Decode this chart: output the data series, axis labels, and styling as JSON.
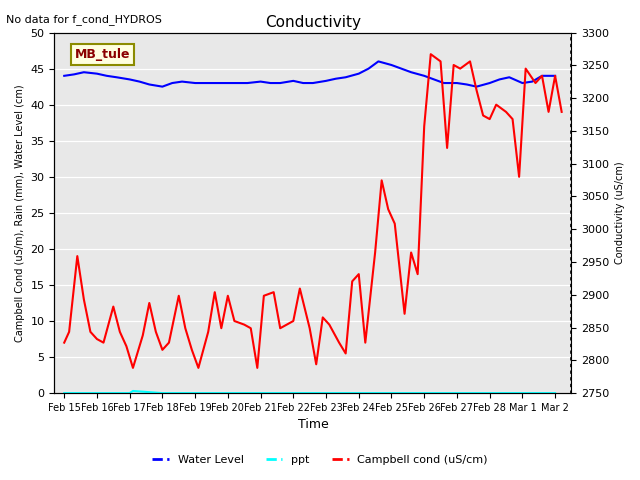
{
  "title": "Conductivity",
  "top_left_text": "No data for f_cond_HYDROS",
  "box_label": "MB_tule",
  "xlabel": "Time",
  "ylabel_left": "Campbell Cond (uS/m), Rain (mm), Water Level (cm)",
  "ylabel_right": "Conductivity (uS/cm)",
  "ylim_left": [
    0,
    50
  ],
  "ylim_right": [
    2750,
    3300
  ],
  "bg_color": "#e8e8e8",
  "fig_bg_color": "#ffffff",
  "xtick_labels": [
    "Feb 15",
    "Feb 16",
    "Feb 17",
    "Feb 18",
    "Feb 19",
    "Feb 20",
    "Feb 21",
    "Feb 22",
    "Feb 23",
    "Feb 24",
    "Feb 25",
    "Feb 26",
    "Feb 27",
    "Feb 28",
    "Mar 1",
    "Mar 2"
  ],
  "water_level_x": [
    0,
    0.3,
    0.6,
    1.0,
    1.3,
    1.6,
    2.0,
    2.3,
    2.6,
    3.0,
    3.3,
    3.6,
    4.0,
    4.3,
    4.6,
    5.0,
    5.3,
    5.6,
    6.0,
    6.3,
    6.6,
    7.0,
    7.3,
    7.6,
    8.0,
    8.3,
    8.6,
    9.0,
    9.3,
    9.6,
    10.0,
    10.3,
    10.6,
    11.0,
    11.3,
    11.6,
    12.0,
    12.3,
    12.6,
    13.0,
    13.3,
    13.6,
    14.0,
    14.3,
    14.6,
    15.0
  ],
  "water_level_y": [
    44.0,
    44.2,
    44.5,
    44.3,
    44.0,
    43.8,
    43.5,
    43.2,
    42.8,
    42.5,
    43.0,
    43.2,
    43.0,
    43.0,
    43.0,
    43.0,
    43.0,
    43.0,
    43.2,
    43.0,
    43.0,
    43.3,
    43.0,
    43.0,
    43.3,
    43.6,
    43.8,
    44.3,
    45.0,
    46.0,
    45.5,
    45.0,
    44.5,
    44.0,
    43.5,
    43.0,
    43.0,
    42.8,
    42.5,
    43.0,
    43.5,
    43.8,
    43.0,
    43.2,
    44.0,
    44.0
  ],
  "ppt_x": [
    0,
    1,
    2,
    2.1,
    3,
    4,
    5,
    6,
    7,
    8,
    9,
    10,
    11,
    12,
    13,
    14,
    15
  ],
  "ppt_y": [
    0,
    0,
    0,
    0.3,
    0,
    0,
    0,
    0,
    0,
    0,
    0,
    0,
    0,
    0,
    0,
    0,
    0
  ],
  "campbell_x": [
    0,
    0.15,
    0.4,
    0.6,
    0.8,
    1.0,
    1.2,
    1.5,
    1.7,
    1.9,
    2.1,
    2.4,
    2.6,
    2.8,
    3.0,
    3.2,
    3.5,
    3.7,
    3.9,
    4.1,
    4.4,
    4.6,
    4.8,
    5.0,
    5.2,
    5.5,
    5.7,
    5.9,
    6.1,
    6.4,
    6.6,
    6.8,
    7.0,
    7.2,
    7.5,
    7.7,
    7.9,
    8.1,
    8.4,
    8.6,
    8.8,
    9.0,
    9.2,
    9.5,
    9.7,
    9.9,
    10.1,
    10.4,
    10.6,
    10.8,
    11.0,
    11.2,
    11.5,
    11.7,
    11.9,
    12.1,
    12.4,
    12.6,
    12.8,
    13.0,
    13.2,
    13.5,
    13.7,
    13.9,
    14.1,
    14.4,
    14.6,
    14.8,
    15.0,
    15.2
  ],
  "campbell_y": [
    7.0,
    8.5,
    19.0,
    13.0,
    8.5,
    7.5,
    7.0,
    12.0,
    8.5,
    6.5,
    3.5,
    8.0,
    12.5,
    8.5,
    6.0,
    7.0,
    13.5,
    9.0,
    6.0,
    3.5,
    8.5,
    14.0,
    9.0,
    13.5,
    10.0,
    9.5,
    9.0,
    3.5,
    13.5,
    14.0,
    9.0,
    9.5,
    10.0,
    14.5,
    9.0,
    4.0,
    10.5,
    9.5,
    7.0,
    5.5,
    15.5,
    16.5,
    7.0,
    19.5,
    29.5,
    25.5,
    23.5,
    11.0,
    19.5,
    16.5,
    37.0,
    47.0,
    46.0,
    34.0,
    45.5,
    45.0,
    46.0,
    42.0,
    38.5,
    38.0,
    40.0,
    39.0,
    38.0,
    30.0,
    45.0,
    43.0,
    44.0,
    39.0,
    44.0,
    39.0
  ],
  "yticks_left": [
    0,
    5,
    10,
    15,
    20,
    25,
    30,
    35,
    40,
    45,
    50
  ],
  "yticks_right": [
    2750,
    2800,
    2850,
    2900,
    2950,
    3000,
    3050,
    3100,
    3150,
    3200,
    3250,
    3300
  ]
}
